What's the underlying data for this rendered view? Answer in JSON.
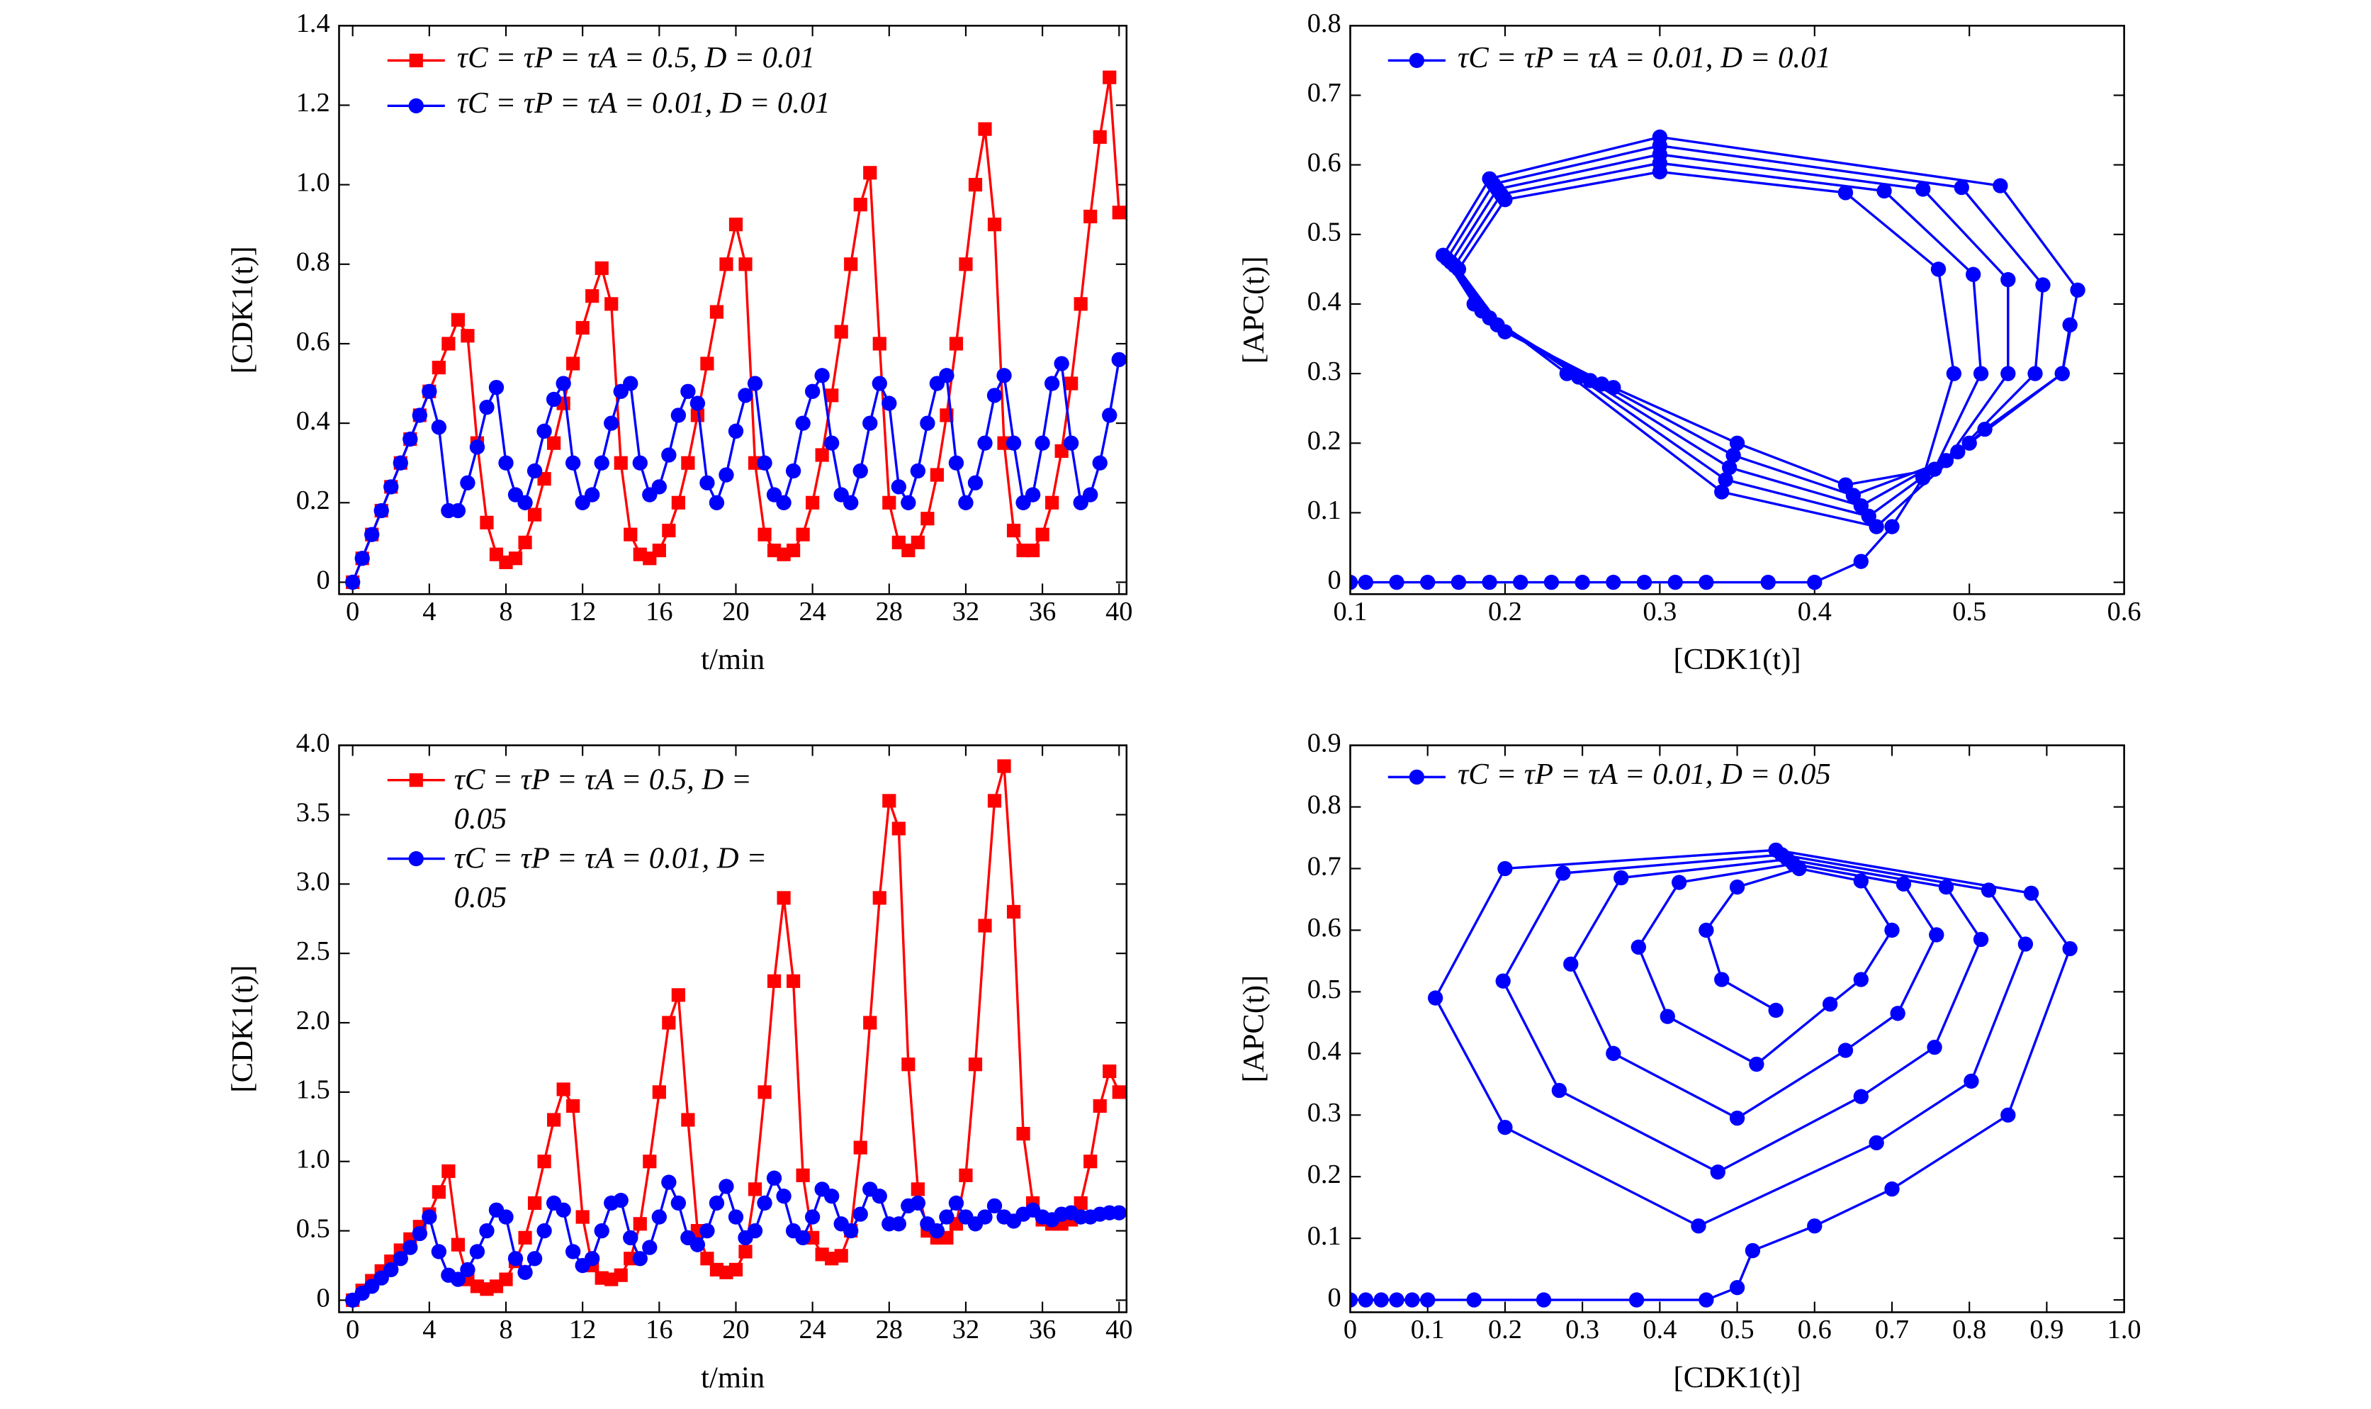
{
  "chart_data": [
    {
      "type": "line",
      "xlabel": "t/min",
      "ylabel": "[CDK1(t)]",
      "legend": "upper left",
      "xlim": [
        -0.71,
        40.39
      ],
      "ylim": [
        -0.03,
        1.4
      ],
      "xticks": [
        0,
        4,
        8,
        12,
        16,
        20,
        24,
        28,
        32,
        36,
        40
      ],
      "yticks": [
        0,
        0.2,
        0.4,
        0.6,
        0.8,
        {
          "value": 1,
          "label": "1.0"
        },
        1.2,
        1.4
      ],
      "x": [
        0,
        0.5,
        1,
        1.5,
        2,
        2.5,
        3,
        3.5,
        4,
        4.5,
        5,
        5.5,
        6,
        6.5,
        7,
        7.5,
        8,
        8.5,
        9,
        9.5,
        10,
        10.5,
        11,
        11.5,
        12,
        12.5,
        13,
        13.5,
        14,
        14.5,
        15,
        15.5,
        16,
        16.5,
        17,
        17.5,
        18,
        18.5,
        19,
        19.5,
        20,
        20.5,
        21,
        21.5,
        22,
        22.5,
        23,
        23.5,
        24,
        24.5,
        25,
        25.5,
        26,
        26.5,
        27,
        27.5,
        28,
        28.5,
        29,
        29.5,
        30,
        30.5,
        31,
        31.5,
        32,
        32.5,
        33,
        33.5,
        34,
        34.5,
        35,
        35.5,
        36,
        36.5,
        37,
        37.5,
        38,
        38.5,
        39,
        39.5,
        40
      ],
      "series": [
        {
          "name": "τC = τP = τA = 0.5, D = 0.01",
          "color": "#ff0000",
          "marker": "square",
          "values": [
            0,
            0.06,
            0.12,
            0.18,
            0.24,
            0.3,
            0.36,
            0.42,
            0.48,
            0.54,
            0.6,
            0.66,
            0.62,
            0.35,
            0.15,
            0.07,
            0.05,
            0.06,
            0.1,
            0.17,
            0.26,
            0.35,
            0.45,
            0.55,
            0.64,
            0.72,
            0.79,
            0.7,
            0.3,
            0.12,
            0.07,
            0.06,
            0.08,
            0.13,
            0.2,
            0.3,
            0.42,
            0.55,
            0.68,
            0.8,
            0.9,
            0.8,
            0.3,
            0.12,
            0.08,
            0.07,
            0.08,
            0.12,
            0.2,
            0.32,
            0.47,
            0.63,
            0.8,
            0.95,
            1.03,
            0.6,
            0.2,
            0.1,
            0.08,
            0.1,
            0.16,
            0.27,
            0.42,
            0.6,
            0.8,
            1.0,
            1.14,
            0.9,
            0.35,
            0.13,
            0.08,
            0.08,
            0.12,
            0.2,
            0.33,
            0.5,
            0.7,
            0.92,
            1.12,
            1.27,
            0.93
          ]
        },
        {
          "name": "τC = τP = τA = 0.01, D = 0.01",
          "color": "#0000ff",
          "marker": "circle",
          "values": [
            0,
            0.06,
            0.12,
            0.18,
            0.24,
            0.3,
            0.36,
            0.42,
            0.48,
            0.39,
            0.18,
            0.18,
            0.25,
            0.34,
            0.44,
            0.49,
            0.3,
            0.22,
            0.2,
            0.28,
            0.38,
            0.46,
            0.5,
            0.3,
            0.2,
            0.22,
            0.3,
            0.4,
            0.48,
            0.5,
            0.3,
            0.22,
            0.24,
            0.32,
            0.42,
            0.48,
            0.45,
            0.25,
            0.2,
            0.27,
            0.38,
            0.47,
            0.5,
            0.3,
            0.22,
            0.2,
            0.28,
            0.4,
            0.48,
            0.52,
            0.35,
            0.22,
            0.2,
            0.28,
            0.4,
            0.5,
            0.45,
            0.24,
            0.2,
            0.28,
            0.4,
            0.5,
            0.52,
            0.3,
            0.2,
            0.25,
            0.35,
            0.47,
            0.52,
            0.35,
            0.2,
            0.22,
            0.35,
            0.5,
            0.55,
            0.35,
            0.2,
            0.22,
            0.3,
            0.42,
            0.56
          ]
        }
      ]
    },
    {
      "type": "line",
      "xlabel": "[CDK1(t)]",
      "ylabel": "[APC(t)]",
      "legend": "upper left",
      "xlim": [
        0.1,
        0.6
      ],
      "ylim": [
        -0.017,
        0.8
      ],
      "xticks": [
        0.1,
        0.2,
        0.3,
        0.4,
        0.5,
        0.6
      ],
      "yticks": [
        0,
        0.1,
        0.2,
        0.3,
        0.4,
        0.5,
        0.6,
        0.7,
        0.8
      ],
      "x": [
        0.1,
        0.11,
        0.13,
        0.15,
        0.17,
        0.19,
        0.21,
        0.23,
        0.25,
        0.27,
        0.29,
        0.31,
        0.33,
        0.37,
        0.4,
        0.43,
        0.45,
        0.47,
        0.49,
        0.48,
        0.42,
        0.3,
        0.2,
        0.17,
        0.2,
        0.27,
        0.35,
        0.42,
        0.4775,
        0.5075,
        0.5025,
        0.445,
        0.3,
        0.1975,
        0.1675,
        0.195,
        0.2625,
        0.3475,
        0.425,
        0.485,
        0.525,
        0.525,
        0.47,
        0.3,
        0.195,
        0.165,
        0.19,
        0.255,
        0.345,
        0.43,
        0.4925,
        0.5425,
        0.5475,
        0.495,
        0.3,
        0.1925,
        0.1625,
        0.185,
        0.2475,
        0.3425,
        0.435,
        0.5,
        0.56,
        0.57,
        0.52,
        0.3,
        0.19,
        0.16,
        0.18,
        0.24,
        0.34,
        0.44,
        0.51,
        0.56,
        0.565
      ],
      "series": [
        {
          "name": "τC = τP = τA = 0.01, D = 0.01",
          "color": "#0000ff",
          "marker": "circle",
          "values": [
            0,
            0,
            0,
            0,
            0,
            0,
            0,
            0,
            0,
            0,
            0,
            0,
            0,
            0,
            0,
            0.03,
            0.08,
            0.15,
            0.3,
            0.45,
            0.56,
            0.59,
            0.55,
            0.45,
            0.36,
            0.28,
            0.2,
            0.14,
            0.1625,
            0.3,
            0.4425,
            0.5625,
            0.6025,
            0.5575,
            0.455,
            0.37,
            0.285,
            0.1825,
            0.125,
            0.175,
            0.3,
            0.435,
            0.565,
            0.615,
            0.565,
            0.46,
            0.38,
            0.29,
            0.165,
            0.11,
            0.1875,
            0.3,
            0.4275,
            0.5675,
            0.6275,
            0.5725,
            0.465,
            0.39,
            0.295,
            0.1475,
            0.095,
            0.2,
            0.3,
            0.42,
            0.57,
            0.64,
            0.58,
            0.47,
            0.4,
            0.3,
            0.13,
            0.08,
            0.22,
            0.3,
            0.37
          ]
        }
      ]
    },
    {
      "type": "line",
      "xlabel": "t/min",
      "ylabel": "[CDK1(t)]",
      "legend": "upper left",
      "xlim": [
        -0.71,
        40.39
      ],
      "ylim": [
        -0.087,
        4.0
      ],
      "xticks": [
        0,
        4,
        8,
        12,
        16,
        20,
        24,
        28,
        32,
        36,
        40
      ],
      "yticks": [
        0,
        0.5,
        {
          "value": 1,
          "label": "1.0"
        },
        1.5,
        {
          "value": 2,
          "label": "2.0"
        },
        2.5,
        {
          "value": 3,
          "label": "3.0"
        },
        3.5,
        {
          "value": 4,
          "label": "4.0"
        }
      ],
      "x": [
        0,
        0.5,
        1,
        1.5,
        2,
        2.5,
        3,
        3.5,
        4,
        4.5,
        5,
        5.5,
        6,
        6.5,
        7,
        7.5,
        8,
        8.5,
        9,
        9.5,
        10,
        10.5,
        11,
        11.5,
        12,
        12.5,
        13,
        13.5,
        14,
        14.5,
        15,
        15.5,
        16,
        16.5,
        17,
        17.5,
        18,
        18.5,
        19,
        19.5,
        20,
        20.5,
        21,
        21.5,
        22,
        22.5,
        23,
        23.5,
        24,
        24.5,
        25,
        25.5,
        26,
        26.5,
        27,
        27.5,
        28,
        28.5,
        29,
        29.5,
        30,
        30.5,
        31,
        31.5,
        32,
        32.5,
        33,
        33.5,
        34,
        34.5,
        35,
        35.5,
        36,
        36.5,
        37,
        37.5,
        38,
        38.5,
        39,
        39.5,
        40
      ],
      "series": [
        {
          "name": "τC = τP = τA = 0.5, D = 0.05",
          "color": "#ff0000",
          "marker": "square",
          "values": [
            0,
            0.07,
            0.14,
            0.21,
            0.28,
            0.36,
            0.44,
            0.53,
            0.62,
            0.78,
            0.93,
            0.4,
            0.15,
            0.1,
            0.08,
            0.1,
            0.15,
            0.28,
            0.45,
            0.7,
            1.0,
            1.3,
            1.52,
            1.4,
            0.6,
            0.25,
            0.16,
            0.15,
            0.18,
            0.3,
            0.55,
            1.0,
            1.5,
            2.0,
            2.2,
            1.3,
            0.5,
            0.3,
            0.22,
            0.2,
            0.22,
            0.35,
            0.8,
            1.5,
            2.3,
            2.9,
            2.3,
            0.9,
            0.45,
            0.33,
            0.3,
            0.32,
            0.5,
            1.1,
            2.0,
            2.9,
            3.6,
            3.4,
            1.7,
            0.8,
            0.5,
            0.45,
            0.45,
            0.55,
            0.9,
            1.7,
            2.7,
            3.6,
            3.85,
            2.8,
            1.2,
            0.7,
            0.58,
            0.55,
            0.55,
            0.58,
            0.7,
            1.0,
            1.4,
            1.65,
            1.5
          ]
        },
        {
          "name": "τC = τP = τA = 0.01, D = 0.05",
          "color": "#0000ff",
          "marker": "circle",
          "values": [
            0,
            0.05,
            0.1,
            0.16,
            0.22,
            0.3,
            0.38,
            0.48,
            0.6,
            0.35,
            0.18,
            0.15,
            0.22,
            0.35,
            0.5,
            0.65,
            0.6,
            0.3,
            0.2,
            0.3,
            0.5,
            0.7,
            0.65,
            0.35,
            0.25,
            0.3,
            0.5,
            0.7,
            0.72,
            0.45,
            0.3,
            0.38,
            0.6,
            0.85,
            0.7,
            0.45,
            0.4,
            0.5,
            0.7,
            0.82,
            0.6,
            0.45,
            0.5,
            0.7,
            0.88,
            0.75,
            0.5,
            0.45,
            0.6,
            0.8,
            0.75,
            0.55,
            0.5,
            0.62,
            0.8,
            0.75,
            0.55,
            0.55,
            0.68,
            0.7,
            0.55,
            0.5,
            0.6,
            0.7,
            0.6,
            0.55,
            0.6,
            0.68,
            0.6,
            0.57,
            0.62,
            0.65,
            0.6,
            0.58,
            0.62,
            0.63,
            0.6,
            0.6,
            0.62,
            0.63,
            0.63
          ]
        }
      ]
    },
    {
      "type": "line",
      "xlabel": "[CDK1(t)]",
      "ylabel": "[APC(t)]",
      "legend": "upper left",
      "xlim": [
        0,
        1
      ],
      "ylim": [
        -0.02,
        0.9
      ],
      "xticks": [
        0,
        0.1,
        0.2,
        0.3,
        0.4,
        0.5,
        0.6,
        0.7,
        0.8,
        0.9,
        {
          "value": 1,
          "label": "1.0"
        }
      ],
      "yticks": [
        0,
        0.1,
        0.2,
        0.3,
        0.4,
        0.5,
        0.6,
        0.7,
        0.8,
        0.9
      ],
      "x": [
        0,
        0.02,
        0.04,
        0.06,
        0.08,
        0.1,
        0.16,
        0.25,
        0.37,
        0.46,
        0.5,
        0.52,
        0.6,
        0.7,
        0.85,
        0.93,
        0.88,
        0.55,
        0.2,
        0.11,
        0.2,
        0.45,
        0.68,
        0.8025,
        0.8725,
        0.825,
        0.5575,
        0.275,
        0.1975,
        0.27,
        0.475,
        0.66,
        0.755,
        0.815,
        0.77,
        0.565,
        0.35,
        0.285,
        0.34,
        0.5,
        0.64,
        0.7075,
        0.7575,
        0.715,
        0.5725,
        0.425,
        0.3725,
        0.41,
        0.525,
        0.62,
        0.66,
        0.7,
        0.66,
        0.58,
        0.5,
        0.46,
        0.48,
        0.55
      ],
      "series": [
        {
          "name": "τC = τP = τA = 0.01, D = 0.05",
          "color": "#0000ff",
          "marker": "circle",
          "values": [
            0,
            0,
            0,
            0,
            0,
            0,
            0,
            0,
            0,
            0,
            0.02,
            0.08,
            0.12,
            0.18,
            0.3,
            0.57,
            0.66,
            0.73,
            0.7,
            0.49,
            0.28,
            0.12,
            0.255,
            0.355,
            0.5775,
            0.665,
            0.7225,
            0.6925,
            0.5175,
            0.34,
            0.2075,
            0.33,
            0.41,
            0.585,
            0.67,
            0.715,
            0.685,
            0.545,
            0.4,
            0.295,
            0.405,
            0.465,
            0.5925,
            0.675,
            0.7075,
            0.6775,
            0.5725,
            0.46,
            0.3825,
            0.48,
            0.52,
            0.6,
            0.68,
            0.7,
            0.67,
            0.6,
            0.52,
            0.47
          ]
        }
      ]
    }
  ]
}
